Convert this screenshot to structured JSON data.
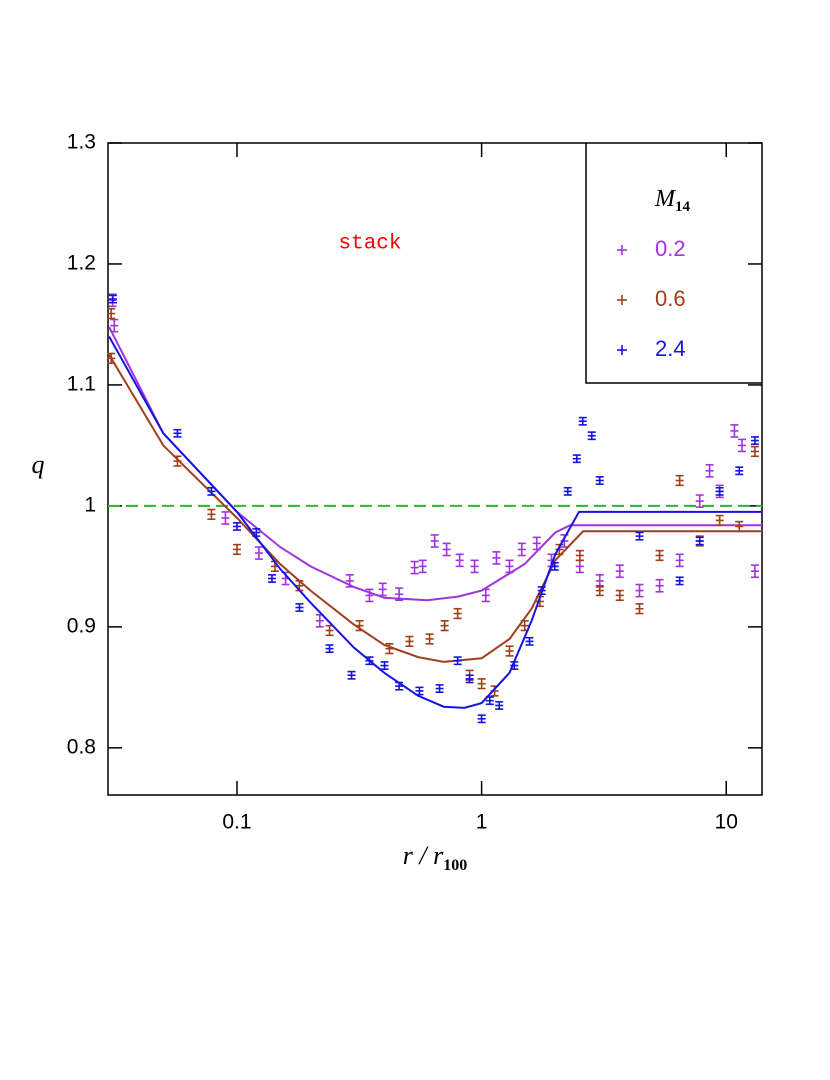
{
  "chart_data": {
    "type": "scatter",
    "xscale": "log",
    "xlim": [
      0.0297,
      14
    ],
    "ylim": [
      0.761,
      1.3
    ],
    "xticks": [
      0.1,
      1,
      10
    ],
    "yticks": [
      0.8,
      0.9,
      1,
      1.1,
      1.2,
      1.3
    ],
    "xlabel": {
      "main": "r / r",
      "sub": "100"
    },
    "ylabel": "q",
    "annotation": {
      "text": "stack",
      "color": "#ff0000"
    },
    "hline": {
      "value": 1,
      "color": "#22bb22"
    },
    "legend": {
      "title": {
        "main": "M",
        "sub": "14"
      },
      "position": "upper right"
    },
    "series": [
      {
        "name": "0.2",
        "color": "#a035e0",
        "error": 0.005,
        "x": [
          0.031,
          0.0315,
          0.0897,
          0.123,
          0.158,
          0.218,
          0.289,
          0.348,
          0.394,
          0.46,
          0.532,
          0.574,
          0.643,
          0.719,
          0.813,
          0.936,
          1.04,
          1.15,
          1.3,
          1.46,
          1.68,
          1.93,
          2.18,
          2.52,
          3.04,
          3.67,
          4.42,
          5.34,
          6.45,
          7.79,
          8.55,
          9.4,
          10.8,
          11.6,
          13.1
        ],
        "values": [
          1.17,
          1.149,
          0.99,
          0.961,
          0.94,
          0.905,
          0.938,
          0.926,
          0.931,
          0.927,
          0.949,
          0.95,
          0.971,
          0.964,
          0.955,
          0.95,
          0.926,
          0.957,
          0.95,
          0.964,
          0.969,
          0.955,
          0.971,
          0.95,
          0.938,
          0.946,
          0.93,
          0.934,
          0.955,
          1.004,
          1.029,
          1.012,
          1.062,
          1.05,
          0.946
        ],
        "fit_x": [
          0.03,
          0.05,
          0.1,
          0.15,
          0.2,
          0.3,
          0.4,
          0.6,
          0.8,
          1,
          1.5,
          2,
          2.3,
          3,
          14
        ],
        "fit": [
          1.148,
          1.06,
          0.995,
          0.966,
          0.95,
          0.933,
          0.924,
          0.922,
          0.925,
          0.93,
          0.952,
          0.978,
          0.984,
          0.984,
          0.984
        ]
      },
      {
        "name": "0.6",
        "color": "#a0401a",
        "error": 0.004,
        "x": [
          0.0306,
          0.0306,
          0.0571,
          0.0786,
          0.1,
          0.143,
          0.18,
          0.239,
          0.317,
          0.42,
          0.507,
          0.613,
          0.706,
          0.798,
          0.893,
          1.0,
          1.13,
          1.3,
          1.5,
          1.73,
          2.08,
          2.52,
          3.04,
          3.67,
          4.42,
          5.34,
          6.45,
          7.79,
          9.4,
          11.3,
          13.1
        ],
        "values": [
          1.159,
          1.122,
          1.037,
          0.993,
          0.964,
          0.95,
          0.934,
          0.897,
          0.901,
          0.882,
          0.888,
          0.89,
          0.901,
          0.911,
          0.86,
          0.853,
          0.847,
          0.88,
          0.901,
          0.921,
          0.964,
          0.959,
          0.93,
          0.926,
          0.915,
          0.959,
          1.021,
          0.971,
          0.988,
          0.983,
          1.045
        ],
        "fit_x": [
          0.03,
          0.05,
          0.1,
          0.15,
          0.2,
          0.3,
          0.4,
          0.55,
          0.7,
          1,
          1.3,
          1.6,
          2,
          2.6,
          14
        ],
        "fit": [
          1.125,
          1.05,
          0.99,
          0.952,
          0.93,
          0.902,
          0.885,
          0.875,
          0.871,
          0.874,
          0.89,
          0.915,
          0.955,
          0.979,
          0.979
        ]
      },
      {
        "name": "2.4",
        "color": "#1414e0",
        "error": 0.003,
        "x": [
          0.0311,
          0.0571,
          0.0786,
          0.1,
          0.12,
          0.139,
          0.18,
          0.239,
          0.294,
          0.348,
          0.401,
          0.46,
          0.557,
          0.673,
          0.798,
          0.893,
          1.0,
          1.08,
          1.18,
          1.36,
          1.57,
          1.76,
          1.99,
          2.25,
          2.45,
          2.59,
          2.82,
          3.04,
          4.42,
          6.45,
          7.79,
          9.4,
          11.3,
          13.1
        ],
        "values": [
          1.171,
          1.06,
          1.012,
          0.983,
          0.978,
          0.94,
          0.916,
          0.882,
          0.86,
          0.872,
          0.868,
          0.851,
          0.847,
          0.849,
          0.872,
          0.857,
          0.824,
          0.839,
          0.835,
          0.868,
          0.888,
          0.93,
          0.95,
          1.012,
          1.039,
          1.07,
          1.058,
          1.021,
          0.975,
          0.938,
          0.971,
          1.012,
          1.029,
          1.054
        ],
        "fit_x": [
          0.03,
          0.05,
          0.1,
          0.15,
          0.2,
          0.3,
          0.4,
          0.55,
          0.7,
          0.85,
          1,
          1.3,
          1.6,
          2,
          2.5,
          14
        ],
        "fit": [
          1.14,
          1.06,
          0.995,
          0.948,
          0.92,
          0.883,
          0.862,
          0.843,
          0.834,
          0.833,
          0.837,
          0.862,
          0.905,
          0.96,
          0.995,
          0.995
        ]
      }
    ]
  }
}
